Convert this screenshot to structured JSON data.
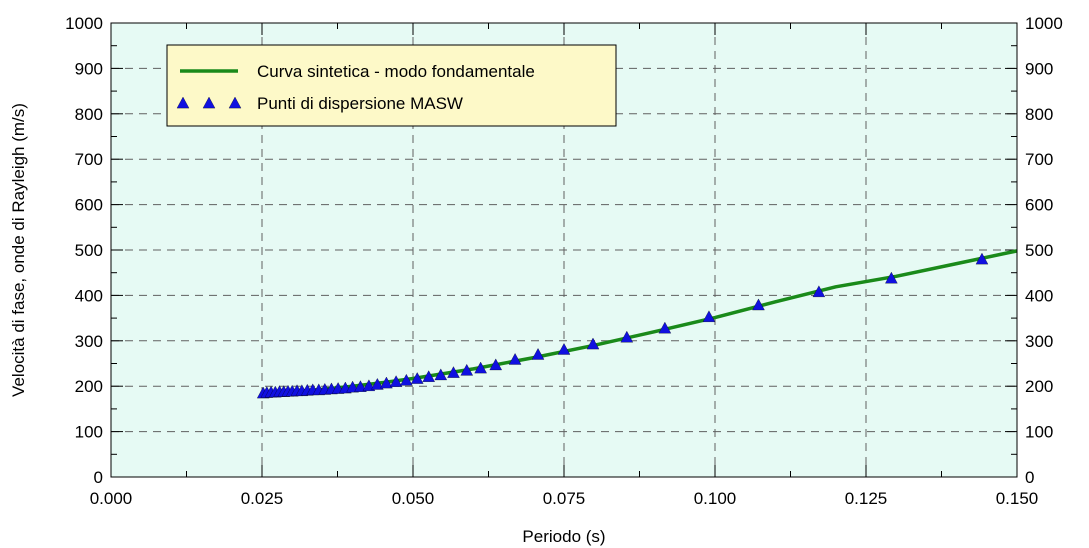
{
  "colors": {
    "plot_background": "#e6faf4",
    "curve": "#1a8a1a",
    "points": "#1010e0",
    "legend_background": "#fdf9c8",
    "grid": "#606060"
  },
  "chart_data": {
    "type": "scatter",
    "xlabel": "Periodo (s)",
    "ylabel": "Velocità di fase, onde di Rayleigh (m/s)",
    "xlim": [
      0.0,
      0.15
    ],
    "ylim": [
      0,
      1000
    ],
    "x_ticks": [
      "0.000",
      "0.025",
      "0.050",
      "0.075",
      "0.100",
      "0.125",
      "0.150"
    ],
    "y_ticks": [
      "0",
      "100",
      "200",
      "300",
      "400",
      "500",
      "600",
      "700",
      "800",
      "900",
      "1000"
    ],
    "y_ticks_right": true,
    "grid": true,
    "legend_position": "top-left",
    "legend": [
      "Curva sintetica - modo fondamentale",
      "Punti di dispersione MASW"
    ],
    "series": [
      {
        "name": "Curva sintetica - modo fondamentale",
        "type": "line",
        "color": "#1a8a1a",
        "x": [
          0.025,
          0.03,
          0.035,
          0.04,
          0.045,
          0.05,
          0.06,
          0.07,
          0.08,
          0.09,
          0.1,
          0.11,
          0.12,
          0.13,
          0.14,
          0.15
        ],
        "y": [
          183,
          188,
          193,
          200,
          208,
          217,
          238,
          263,
          290,
          320,
          351,
          386,
          419,
          442,
          470,
          498
        ]
      },
      {
        "name": "Punti di dispersione MASW",
        "type": "scatter",
        "marker": "triangle",
        "color": "#1010e0",
        "x": [
          0.0252,
          0.0258,
          0.0265,
          0.0272,
          0.0279,
          0.0286,
          0.0293,
          0.03,
          0.0308,
          0.0316,
          0.0325,
          0.0334,
          0.0344,
          0.0354,
          0.0365,
          0.0376,
          0.0388,
          0.04,
          0.0413,
          0.0427,
          0.0441,
          0.0456,
          0.0472,
          0.0489,
          0.0507,
          0.0526,
          0.0546,
          0.0567,
          0.0589,
          0.0612,
          0.0637,
          0.0669,
          0.0707,
          0.075,
          0.0798,
          0.0854,
          0.0917,
          0.099,
          0.1072,
          0.1172,
          0.1292,
          0.1442
        ],
        "y": [
          185,
          186,
          187,
          187,
          188,
          188,
          189,
          189,
          190,
          190,
          191,
          192,
          192,
          193,
          194,
          195,
          196,
          198,
          199,
          201,
          204,
          207,
          210,
          213,
          217,
          221,
          225,
          230,
          235,
          240,
          247,
          259,
          270,
          281,
          293,
          308,
          328,
          353,
          379,
          408,
          438,
          480
        ]
      }
    ]
  }
}
